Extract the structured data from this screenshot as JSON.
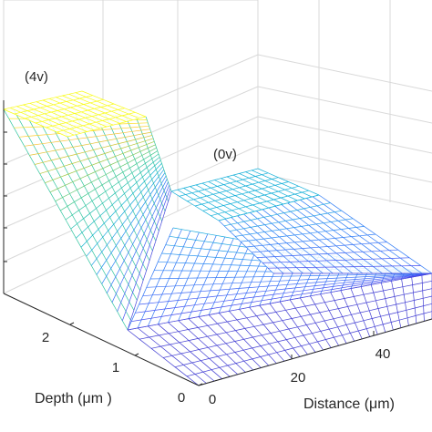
{
  "chart_data": {
    "type": "surface",
    "title": "",
    "xlabel": "Distance (μm)",
    "ylabel": "Depth (μm )",
    "zlabel": "",
    "x_ticks": [
      0,
      20,
      40
    ],
    "y_ticks": [
      0,
      1,
      2
    ],
    "x_range": [
      0,
      55
    ],
    "y_range": [
      0,
      3
    ],
    "z_range": [
      0,
      4
    ],
    "colormap": "parula",
    "grid": true,
    "annotations": [
      {
        "text": "(4v)",
        "at": "high plateau (left electrode)"
      },
      {
        "text": "(0v)",
        "at": "low plateau (right electrode)"
      }
    ],
    "surface": {
      "description_values": {
        "left_plateau_potential": 4,
        "right_plateau_potential": 0
      }
    }
  },
  "labels": {
    "x_title": "Distance (μm)",
    "y_title": "Depth (μm )",
    "ann_4v": "(4v)",
    "ann_0v": "(0v)",
    "x_tick_0": "0",
    "x_tick_1": "20",
    "x_tick_2": "40",
    "y_tick_0": "0",
    "y_tick_1": "1",
    "y_tick_2": "2"
  }
}
